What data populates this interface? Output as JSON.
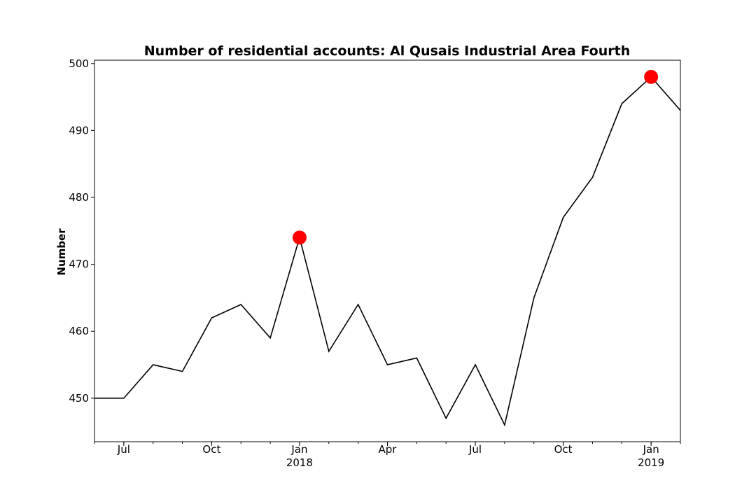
{
  "chart_data": {
    "type": "line",
    "title": "Number of residential accounts: Al Qusais Industrial Area Fourth",
    "xlabel": "",
    "ylabel": "Number",
    "x": [
      "2017-06",
      "2017-07",
      "2017-08",
      "2017-09",
      "2017-10",
      "2017-11",
      "2017-12",
      "2018-01",
      "2018-02",
      "2018-03",
      "2018-04",
      "2018-05",
      "2018-06",
      "2018-07",
      "2018-08",
      "2018-09",
      "2018-10",
      "2018-11",
      "2018-12",
      "2019-01",
      "2019-02"
    ],
    "series": [
      {
        "values": [
          450,
          450,
          455,
          454,
          462,
          464,
          459,
          474,
          457,
          464,
          455,
          456,
          447,
          455,
          446,
          465,
          477,
          483,
          494,
          498,
          493
        ],
        "color": "#000000"
      }
    ],
    "highlighted_points": [
      {
        "x": "2018-01",
        "y": 474,
        "color": "#ff0000"
      },
      {
        "x": "2019-01",
        "y": 498,
        "color": "#ff0000"
      }
    ],
    "ylim": [
      443.5,
      500.5
    ],
    "yticks": [
      450,
      460,
      470,
      480,
      490,
      500
    ],
    "xticks": [
      {
        "x": "2017-07",
        "label": "Jul",
        "sublabel": ""
      },
      {
        "x": "2017-10",
        "label": "Oct",
        "sublabel": ""
      },
      {
        "x": "2018-01",
        "label": "Jan",
        "sublabel": "2018"
      },
      {
        "x": "2018-04",
        "label": "Apr",
        "sublabel": ""
      },
      {
        "x": "2018-07",
        "label": "Jul",
        "sublabel": ""
      },
      {
        "x": "2018-10",
        "label": "Oct",
        "sublabel": ""
      },
      {
        "x": "2019-01",
        "label": "Jan",
        "sublabel": "2019"
      }
    ],
    "grid": false,
    "legend": "none"
  }
}
